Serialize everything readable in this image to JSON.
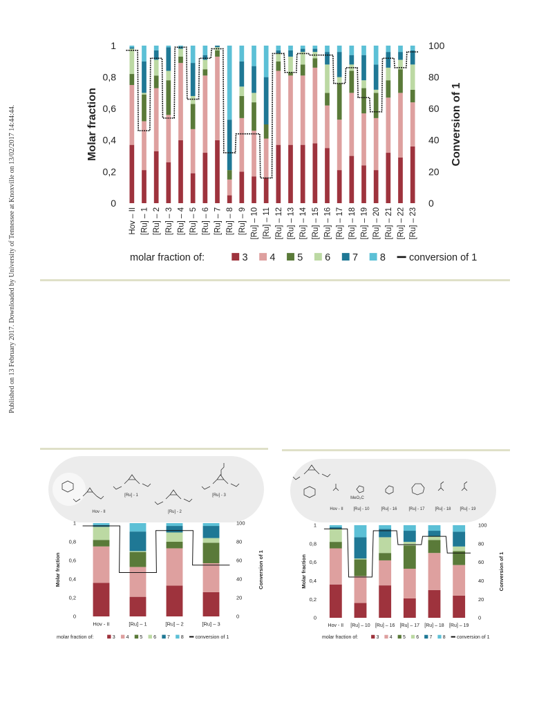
{
  "sidebar_text": "Published on 13 February 2017. Downloaded by University of Tennessee at Knoxville on 13/02/2017 14:44:44.",
  "colors": {
    "s3": "#9e333d",
    "s4": "#dea09f",
    "s5": "#5a7a39",
    "s6": "#bcd9a3",
    "s7": "#1f7895",
    "s8": "#5cc0d6",
    "conversion": "#111111",
    "rule": "#dfe0c8",
    "panel": "#ececec"
  },
  "scheme_left": {
    "labels": [
      "Hov - II",
      "[Ru] - 1",
      "[Ru] - 2",
      "[Ru] - 3"
    ],
    "substituent": "O\nO–C₃F₅"
  },
  "scheme_right": {
    "labels": [
      "Hov - II",
      "[Ru] - 10",
      "[Ru] - 16",
      "[Ru] - 17",
      "[Ru] - 18",
      "[Ru] - 19"
    ],
    "substituent": "MeO₂C"
  },
  "chart_data": [
    {
      "type": "bar",
      "stacked": true,
      "ylabel": "Molar fraction",
      "y2label": "Conversion of 1",
      "ylim": [
        0,
        1
      ],
      "y2lim": [
        0,
        100
      ],
      "yticks": [
        "0",
        "0,2",
        "0,4",
        "0,6",
        "0,8",
        "1"
      ],
      "y2ticks": [
        "0",
        "20",
        "40",
        "60",
        "80",
        "100"
      ],
      "legend_prefix": "molar fraction of:",
      "legend_position": "bottom",
      "categories": [
        "Hov – II",
        "[Ru] – 1",
        "[Ru] – 2",
        "[Ru] – 3",
        "[Ru] – 4",
        "[Ru] – 5",
        "[Ru] – 6",
        "[Ru] – 7",
        "[Ru] – 8",
        "[Ru] – 9",
        "[Ru] – 10",
        "[Ru] – 11",
        "[Ru] – 12",
        "[Ru] – 13",
        "[Ru] – 14",
        "[Ru] – 15",
        "[Ru] – 16",
        "[Ru] – 17",
        "[Ru] – 18",
        "[Ru] – 19",
        "[Ru] – 20",
        "[Ru] – 21",
        "[Ru] – 22",
        "[Ru] – 23"
      ],
      "series": [
        {
          "name": "3",
          "values": [
            0.37,
            0.21,
            0.33,
            0.26,
            0.4,
            0.19,
            0.32,
            0.4,
            0.05,
            0.2,
            0.17,
            0.16,
            0.37,
            0.37,
            0.37,
            0.38,
            0.35,
            0.21,
            0.3,
            0.24,
            0.21,
            0.32,
            0.29,
            0.36
          ]
        },
        {
          "name": "4",
          "values": [
            0.38,
            0.31,
            0.4,
            0.3,
            0.49,
            0.28,
            0.49,
            0.53,
            0.1,
            0.34,
            0.29,
            0.25,
            0.47,
            0.44,
            0.44,
            0.48,
            0.27,
            0.32,
            0.4,
            0.33,
            0.33,
            0.35,
            0.41,
            0.28
          ]
        },
        {
          "name": "5",
          "values": [
            0.07,
            0.17,
            0.08,
            0.22,
            0.04,
            0.16,
            0.04,
            0.04,
            0.06,
            0.14,
            0.18,
            0.09,
            0.06,
            0.02,
            0.07,
            0.06,
            0.08,
            0.23,
            0.14,
            0.16,
            0.16,
            0.11,
            0.15,
            0.08
          ]
        },
        {
          "name": "6",
          "values": [
            0.16,
            0.01,
            0.1,
            0.06,
            0.05,
            0.05,
            0.06,
            0.02,
            0.0,
            0.06,
            0.06,
            0.0,
            0.05,
            0.1,
            0.08,
            0.04,
            0.18,
            0.04,
            0.04,
            0.05,
            0.02,
            0.08,
            0.06,
            0.16
          ]
        },
        {
          "name": "7",
          "values": [
            0.01,
            0.2,
            0.06,
            0.15,
            0.01,
            0.21,
            0.03,
            0.01,
            0.32,
            0.16,
            0.17,
            0.3,
            0.02,
            0.04,
            0.02,
            0.02,
            0.08,
            0.16,
            0.06,
            0.16,
            0.16,
            0.1,
            0.05,
            0.09
          ]
        },
        {
          "name": "8",
          "values": [
            0.01,
            0.1,
            0.03,
            0.01,
            0.01,
            0.11,
            0.06,
            0.0,
            0.47,
            0.1,
            0.13,
            0.2,
            0.03,
            0.03,
            0.02,
            0.02,
            0.04,
            0.04,
            0.06,
            0.06,
            0.12,
            0.04,
            0.04,
            0.03
          ]
        }
      ],
      "conversion": {
        "name": "conversion of 1",
        "values": [
          97,
          46,
          92,
          54,
          99,
          66,
          92,
          98,
          32,
          44,
          44,
          16,
          95,
          83,
          95,
          94,
          94,
          76,
          86,
          67,
          58,
          92,
          86,
          96
        ]
      }
    },
    {
      "type": "bar",
      "stacked": true,
      "ylabel": "Molar fraction",
      "y2label": "Conversion of 1",
      "ylim": [
        0,
        1
      ],
      "y2lim": [
        0,
        100
      ],
      "yticks": [
        "0",
        "0,2",
        "0,4",
        "0,6",
        "0,8",
        "1"
      ],
      "y2ticks": [
        "0",
        "20",
        "40",
        "60",
        "80",
        "100"
      ],
      "legend_prefix": "molar fraction of:",
      "categories": [
        "Hov - II",
        "[Ru] – 1",
        "[Ru] – 2",
        "[Ru] – 3"
      ],
      "series": [
        {
          "name": "3",
          "values": [
            0.36,
            0.21,
            0.33,
            0.26
          ]
        },
        {
          "name": "4",
          "values": [
            0.39,
            0.32,
            0.4,
            0.31
          ]
        },
        {
          "name": "5",
          "values": [
            0.07,
            0.16,
            0.07,
            0.22
          ]
        },
        {
          "name": "6",
          "values": [
            0.14,
            0.01,
            0.1,
            0.05
          ]
        },
        {
          "name": "7",
          "values": [
            0.02,
            0.21,
            0.07,
            0.13
          ]
        },
        {
          "name": "8",
          "values": [
            0.02,
            0.09,
            0.03,
            0.03
          ]
        }
      ],
      "conversion": {
        "name": "conversion of 1",
        "values": [
          97,
          47,
          92,
          55
        ]
      }
    },
    {
      "type": "bar",
      "stacked": true,
      "ylabel": "Molar fraction",
      "y2label": "Conversion of 1",
      "ylim": [
        0,
        1
      ],
      "y2lim": [
        0,
        100
      ],
      "yticks": [
        "0",
        "0,2",
        "0,4",
        "0,6",
        "0,8",
        "1"
      ],
      "y2ticks": [
        "0",
        "20",
        "40",
        "60",
        "80",
        "100"
      ],
      "legend_prefix": "molar fraction of:",
      "categories": [
        "Hov - II",
        "[Ru] – 10",
        "[Ru] – 16",
        "[Ru] – 17",
        "[Ru] – 18",
        "[Ru] – 19"
      ],
      "series": [
        {
          "name": "3",
          "values": [
            0.36,
            0.16,
            0.35,
            0.21,
            0.3,
            0.24
          ]
        },
        {
          "name": "4",
          "values": [
            0.39,
            0.29,
            0.27,
            0.32,
            0.4,
            0.33
          ]
        },
        {
          "name": "5",
          "values": [
            0.07,
            0.18,
            0.08,
            0.25,
            0.14,
            0.15
          ]
        },
        {
          "name": "6",
          "values": [
            0.14,
            0.01,
            0.17,
            0.04,
            0.04,
            0.05
          ]
        },
        {
          "name": "7",
          "values": [
            0.02,
            0.23,
            0.09,
            0.12,
            0.06,
            0.16
          ]
        },
        {
          "name": "8",
          "values": [
            0.02,
            0.13,
            0.04,
            0.06,
            0.06,
            0.07
          ]
        }
      ],
      "conversion": {
        "name": "conversion of 1",
        "values": [
          96,
          44,
          94,
          79,
          88,
          70
        ]
      }
    }
  ]
}
